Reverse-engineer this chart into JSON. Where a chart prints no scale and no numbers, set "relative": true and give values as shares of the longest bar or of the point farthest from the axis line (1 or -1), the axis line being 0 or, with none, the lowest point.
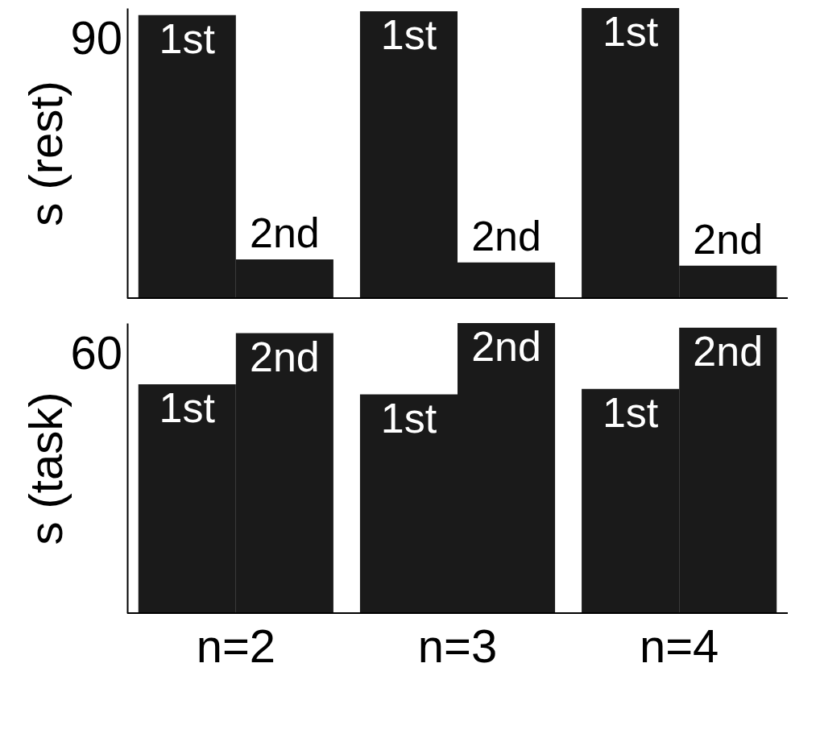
{
  "chart_data": [
    {
      "type": "bar",
      "relative": true,
      "ylabel": "s (rest)",
      "categories": [
        null,
        null,
        null
      ],
      "tick_labels": false,
      "annotations": [
        "90"
      ],
      "series": [
        {
          "name": "1st",
          "color": "#1a1a1a",
          "values": [
            0.976,
            0.989,
            1
          ]
        },
        {
          "name": "2nd",
          "color": "#1a1a1a",
          "values": [
            0.133,
            0.123,
            0.112
          ]
        }
      ]
    },
    {
      "type": "bar",
      "relative": true,
      "ylabel": "s (task)",
      "categories": [
        "n=2",
        "n=3",
        "n=4"
      ],
      "tick_labels": "x",
      "annotations": [
        "60"
      ],
      "series": [
        {
          "name": "1st",
          "color": "#1a1a1a",
          "values": [
            0.789,
            0.754,
            0.773
          ]
        },
        {
          "name": "2nd",
          "color": "#1a1a1a",
          "values": [
            0.965,
            1,
            0.984
          ]
        }
      ]
    }
  ]
}
